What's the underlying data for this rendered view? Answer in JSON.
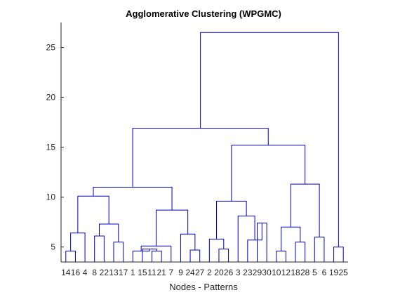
{
  "chart_data": {
    "type": "dendrogram",
    "title": "Agglomerative Clustering (WPGMC)",
    "xlabel": "Nodes - Patterns",
    "ylabel": "",
    "ylim": [
      3.5,
      27.5
    ],
    "yticks": [
      5,
      10,
      15,
      20,
      25
    ],
    "leaf_labels": [
      "14",
      "16",
      "4",
      "8",
      "22",
      "13",
      "17",
      "1",
      "15",
      "11",
      "21",
      "7",
      "9",
      "24",
      "27",
      "2",
      "20",
      "26",
      "3",
      "23",
      "29",
      "30",
      "10",
      "12",
      "18",
      "28",
      "5",
      "6",
      "19",
      "25"
    ],
    "merges": [
      {
        "a": "L0",
        "b": "L1",
        "height": 4.6
      },
      {
        "a": "L2",
        "b": "M0",
        "height": 6.4
      },
      {
        "a": "L3",
        "b": "L4",
        "height": 6.1
      },
      {
        "a": "L5",
        "b": "L6",
        "height": 5.5
      },
      {
        "a": "M2",
        "b": "M3",
        "height": 7.3
      },
      {
        "a": "M1",
        "b": "M4",
        "height": 10.1
      },
      {
        "a": "L9",
        "b": "L10",
        "height": 4.6
      },
      {
        "a": "L8",
        "b": "M6",
        "height": 4.8
      },
      {
        "a": "L7",
        "b": "M7",
        "height": 4.6
      },
      {
        "a": "L11",
        "b": "M8",
        "height": 5.1
      },
      {
        "a": "L13",
        "b": "L14",
        "height": 4.7
      },
      {
        "a": "L12",
        "b": "M10",
        "height": 6.3
      },
      {
        "a": "M9",
        "b": "M11",
        "height": 8.7
      },
      {
        "a": "M5",
        "b": "M12",
        "height": 11.0
      },
      {
        "a": "L16",
        "b": "L17",
        "height": 4.8
      },
      {
        "a": "L15",
        "b": "M14",
        "height": 5.8
      },
      {
        "a": "L20",
        "b": "L21",
        "height": 7.4
      },
      {
        "a": "L19",
        "b": "M16",
        "height": 5.7
      },
      {
        "a": "L18",
        "b": "M17",
        "height": 8.1
      },
      {
        "a": "M15",
        "b": "M18",
        "height": 9.6
      },
      {
        "a": "L22",
        "b": "L23",
        "height": 4.6
      },
      {
        "a": "L24",
        "b": "L25",
        "height": 5.5
      },
      {
        "a": "M20",
        "b": "M21",
        "height": 7.0
      },
      {
        "a": "L26",
        "b": "L27",
        "height": 6.0
      },
      {
        "a": "M22",
        "b": "M23",
        "height": 11.3
      },
      {
        "a": "M19",
        "b": "M24",
        "height": 15.2
      },
      {
        "a": "M13",
        "b": "M25",
        "height": 16.9
      },
      {
        "a": "L28",
        "b": "L29",
        "height": 5.0
      },
      {
        "a": "M26",
        "b": "M27",
        "height": 26.5
      }
    ],
    "line_color": "#0000cc",
    "grid": false
  }
}
